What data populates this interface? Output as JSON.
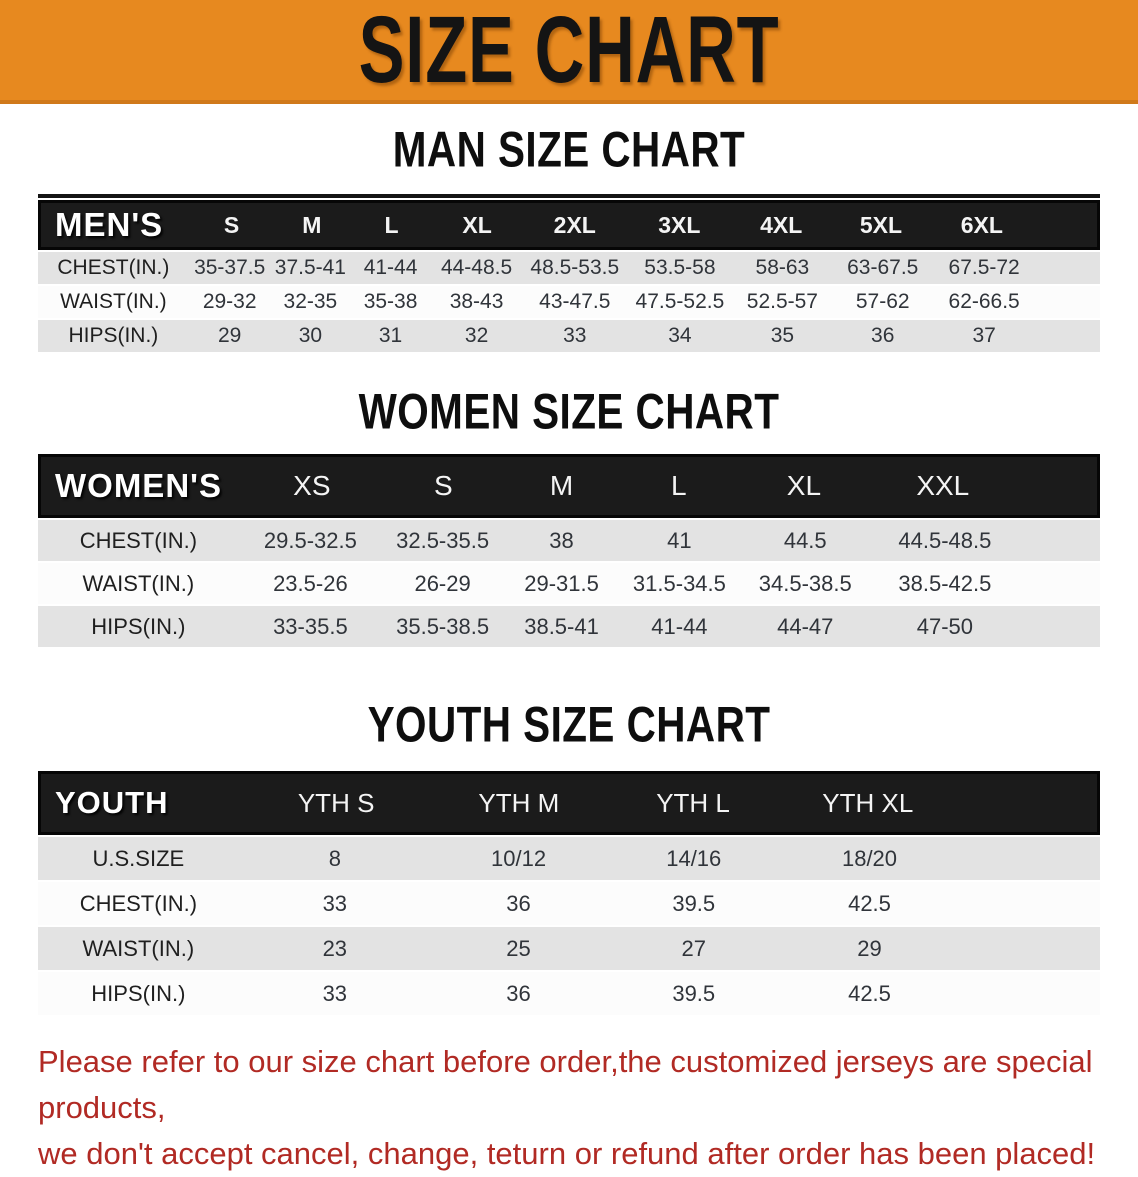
{
  "banner": {
    "title": "SIZE CHART",
    "bg_color": "#e7891f"
  },
  "colors": {
    "banner_orange": "#e7891f",
    "header_black": "#1b1b1b",
    "row_gray": "#e3e3e3",
    "row_white": "#fcfcfc",
    "footer_red": "#b12a24"
  },
  "sections": [
    {
      "id": "men",
      "title": "MAN SIZE CHART",
      "table": {
        "header_label": "MEN'S",
        "columns": [
          "S",
          "M",
          "L",
          "XL",
          "2XL",
          "3XL",
          "4XL",
          "5XL",
          "6XL"
        ],
        "rows": [
          {
            "label": "CHEST(IN.)",
            "values": [
              "35-37.5",
              "37.5-41",
              "41-44",
              "44-48.5",
              "48.5-53.5",
              "53.5-58",
              "58-63",
              "63-67.5",
              "67.5-72"
            ]
          },
          {
            "label": "WAIST(IN.)",
            "values": [
              "29-32",
              "32-35",
              "35-38",
              "38-43",
              "43-47.5",
              "47.5-52.5",
              "52.5-57",
              "57-62",
              "62-66.5"
            ]
          },
          {
            "label": "HIPS(IN.)",
            "values": [
              "29",
              "30",
              "31",
              "32",
              "33",
              "34",
              "35",
              "36",
              "37"
            ]
          }
        ]
      }
    },
    {
      "id": "women",
      "title": "WOMEN SIZE CHART",
      "table": {
        "header_label": "WOMEN'S",
        "columns": [
          "XS",
          "S",
          "M",
          "L",
          "XL",
          "XXL"
        ],
        "rows": [
          {
            "label": "CHEST(IN.)",
            "values": [
              "29.5-32.5",
              "32.5-35.5",
              "38",
              "41",
              "44.5",
              "44.5-48.5"
            ]
          },
          {
            "label": "WAIST(IN.)",
            "values": [
              "23.5-26",
              "26-29",
              "29-31.5",
              "31.5-34.5",
              "34.5-38.5",
              "38.5-42.5"
            ]
          },
          {
            "label": "HIPS(IN.)",
            "values": [
              "33-35.5",
              "35.5-38.5",
              "38.5-41",
              "41-44",
              "44-47",
              "47-50"
            ]
          }
        ]
      }
    },
    {
      "id": "youth",
      "title": "YOUTH SIZE CHART",
      "table": {
        "header_label": "YOUTH",
        "columns": [
          "YTH S",
          "YTH M",
          "YTH L",
          "YTH XL"
        ],
        "rows": [
          {
            "label": "U.S.SIZE",
            "values": [
              "8",
              "10/12",
              "14/16",
              "18/20"
            ]
          },
          {
            "label": "CHEST(IN.)",
            "values": [
              "33",
              "36",
              "39.5",
              "42.5"
            ]
          },
          {
            "label": "WAIST(IN.)",
            "values": [
              "23",
              "25",
              "27",
              "29"
            ]
          },
          {
            "label": "HIPS(IN.)",
            "values": [
              "33",
              "36",
              "39.5",
              "42.5"
            ]
          }
        ]
      }
    }
  ],
  "footer": {
    "line1": "Please refer to our size chart before order,the customized jerseys are special products,",
    "line2": "we don't accept cancel, change, teturn or refund after order has been placed!"
  }
}
